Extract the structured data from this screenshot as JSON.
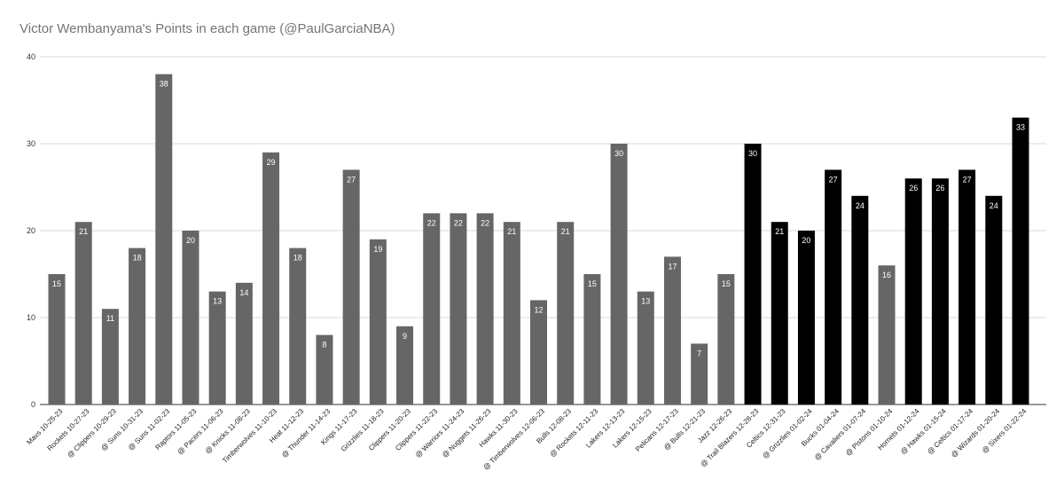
{
  "chart_data": {
    "type": "bar",
    "title": "Victor Wembanyama's Points in each game (@PaulGarciaNBA)",
    "xlabel": "",
    "ylabel": "",
    "ylim": [
      0,
      40
    ],
    "yticks": [
      0,
      10,
      20,
      30,
      40
    ],
    "grid": true,
    "legend": "none",
    "colors": {
      "default": "#666666",
      "highlight": "#000000",
      "grid": "#d9d9d9",
      "label": "#ffffff"
    },
    "categories": [
      "Mavs 10-25-23",
      "Rockets 10-27-23",
      "@ Clippers 10-29-23",
      "@ Suns 10-31-23",
      "@ Suns 11-02-23",
      "Raptors 11-05-23",
      "@ Pacers 11-06-23",
      "@ Knicks 11-08-23",
      "Timberwolves 11-10-23",
      "Heat 11-12-23",
      "@ Thunder 11-14-23",
      "Kings 11-17-23",
      "Grizzlies 11-18-23",
      "Clippers 11-20-23",
      "Clippers 11-22-23",
      "@ Warriors 11-24-23",
      "@ Nuggets 11-26-23",
      "Hawks 11-30-23",
      "@ Timberwolves 12-06-23",
      "Bulls 12-08-23",
      "@ Rockets 12-11-23",
      "Lakers 12-13-23",
      "Lakers 12-15-23",
      "Pelicans 12-17-23",
      "@ Bulls 12-21-23",
      "Jazz 12-26-23",
      "@ Trail Blazers 12-28-23",
      "Celtics 12-31-23",
      "@ Grizzlies 01-02-24",
      "Bucks 01-04-24",
      "@ Cavaliers 01-07-24",
      "@ Pistons 01-10-24",
      "Hornets 01-12-24",
      "@ Hawks 01-15-24",
      "@ Celtics 01-17-24",
      "@ Wizards 01-20-24",
      "@ Sixers 01-22-24"
    ],
    "values": [
      15,
      21,
      11,
      18,
      38,
      20,
      13,
      14,
      29,
      18,
      8,
      27,
      19,
      9,
      22,
      22,
      22,
      21,
      12,
      21,
      15,
      30,
      13,
      17,
      7,
      15,
      30,
      21,
      20,
      27,
      24,
      16,
      26,
      26,
      27,
      24,
      33
    ],
    "highlight": [
      false,
      false,
      false,
      false,
      false,
      false,
      false,
      false,
      false,
      false,
      false,
      false,
      false,
      false,
      false,
      false,
      false,
      false,
      false,
      false,
      false,
      false,
      false,
      false,
      false,
      false,
      true,
      true,
      true,
      true,
      true,
      false,
      true,
      true,
      true,
      true,
      true
    ]
  }
}
